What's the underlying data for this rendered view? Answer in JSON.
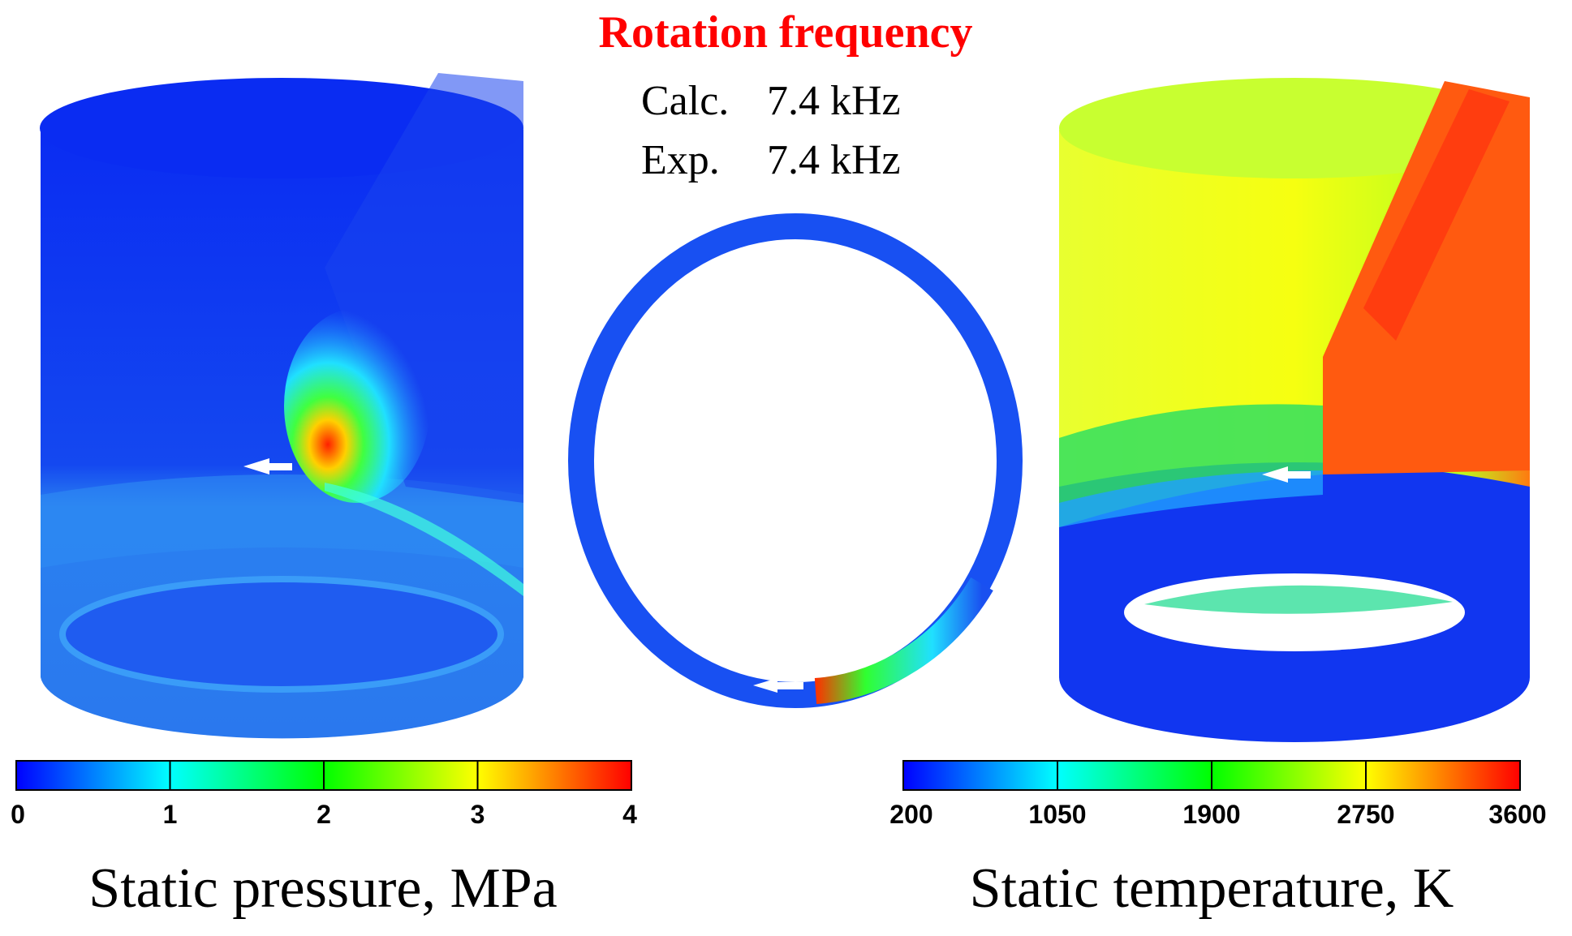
{
  "header": {
    "title": "Rotation frequency",
    "calc_label": "Calc.",
    "calc_value": "7.4 kHz",
    "exp_label": "Exp.",
    "exp_value": "7.4 kHz"
  },
  "colors": {
    "title": "#ff0000",
    "low": "#0000ff",
    "mid_low": "#00ffff",
    "mid": "#00ff00",
    "mid_high": "#ffff00",
    "high": "#ff0000",
    "arrow": "#ffffff"
  },
  "pressure_colorbar": {
    "ticks": [
      "0",
      "1",
      "2",
      "3",
      "4"
    ],
    "range": [
      0,
      4
    ],
    "caption": "Static pressure, MPa"
  },
  "temperature_colorbar": {
    "ticks": [
      "200",
      "1050",
      "1900",
      "2750",
      "3600"
    ],
    "range": [
      200,
      3600
    ],
    "caption": "Static temperature, K"
  }
}
